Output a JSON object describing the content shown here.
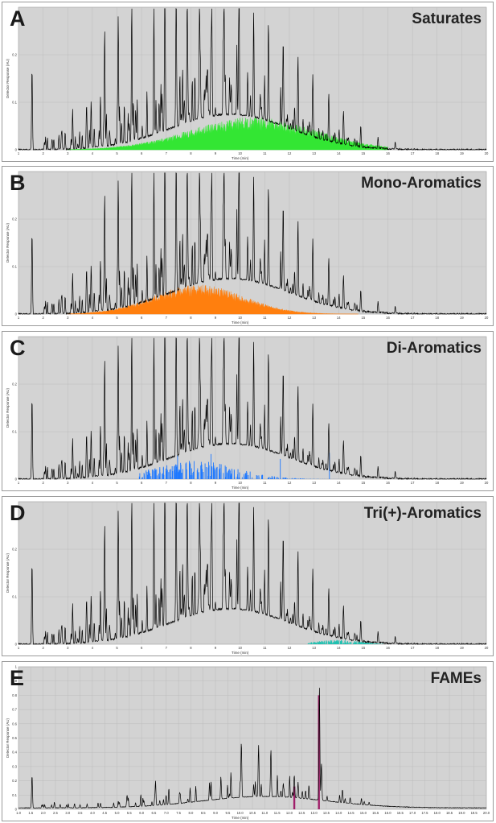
{
  "chart_data": [
    {
      "type": "line",
      "panel_letter": "A",
      "title": "Saturates",
      "xlabel": "Time (min)",
      "ylabel": "Detector Response (AU)",
      "xlim": [
        1,
        20
      ],
      "ylim": [
        0,
        0.3
      ],
      "xticks": [
        "1",
        "2",
        "3",
        "4",
        "5",
        "6",
        "7",
        "8",
        "9",
        "10",
        "11",
        "12",
        "13",
        "14",
        "15",
        "16",
        "17",
        "18",
        "19",
        "20"
      ],
      "yticks": [
        "0",
        "0.1",
        "0.2"
      ],
      "overlay_color": "#33e633",
      "overlay_mode": "envelope",
      "overlay_range": [
        3.0,
        16.0
      ],
      "overlay_peak": 10.5,
      "overlay_amp": 0.055,
      "overlay_spread": 3.6,
      "grid": true
    },
    {
      "type": "line",
      "panel_letter": "B",
      "title": "Mono-Aromatics",
      "xlabel": "Time (min)",
      "ylabel": "Detector Response (AU)",
      "xlim": [
        1,
        20
      ],
      "ylim": [
        0,
        0.3
      ],
      "xticks": [
        "1",
        "2",
        "3",
        "4",
        "5",
        "6",
        "7",
        "8",
        "9",
        "10",
        "11",
        "12",
        "13",
        "14",
        "15",
        "16",
        "17",
        "18",
        "19",
        "20"
      ],
      "yticks": [
        "0",
        "0.1",
        "0.2"
      ],
      "overlay_color": "#ff7f0e",
      "overlay_mode": "envelope",
      "overlay_range": [
        3.0,
        14.8
      ],
      "overlay_peak": 8.3,
      "overlay_amp": 0.05,
      "overlay_spread": 2.6,
      "grid": true
    },
    {
      "type": "line",
      "panel_letter": "C",
      "title": "Di-Aromatics",
      "xlabel": "Time (min)",
      "ylabel": "Detector Response (AU)",
      "xlim": [
        1,
        20
      ],
      "ylim": [
        0,
        0.3
      ],
      "xticks": [
        "1",
        "2",
        "3",
        "4",
        "5",
        "6",
        "7",
        "8",
        "9",
        "10",
        "11",
        "12",
        "13",
        "14",
        "15",
        "16",
        "17",
        "18",
        "19",
        "20"
      ],
      "yticks": [
        "0",
        "0.1",
        "0.2"
      ],
      "overlay_color": "#1e78ff",
      "overlay_mode": "spikes",
      "overlay_range": [
        5.9,
        14.8
      ],
      "overlay_peak": 8.2,
      "overlay_amp": 0.028,
      "overlay_spread": 2.4,
      "grid": true
    },
    {
      "type": "line",
      "panel_letter": "D",
      "title": "Tri(+)-Aromatics",
      "xlabel": "Time (min)",
      "ylabel": "Detector Response (AU)",
      "xlim": [
        1,
        20
      ],
      "ylim": [
        0,
        0.3
      ],
      "xticks": [
        "1",
        "2",
        "3",
        "4",
        "5",
        "6",
        "7",
        "8",
        "9",
        "10",
        "11",
        "12",
        "13",
        "14",
        "15",
        "16",
        "17",
        "18",
        "19",
        "20"
      ],
      "yticks": [
        "0",
        "0.1",
        "0.2"
      ],
      "overlay_color": "#20c0b0",
      "overlay_mode": "spikes",
      "overlay_range": [
        12.7,
        15.8
      ],
      "overlay_peak": 14.0,
      "overlay_amp": 0.007,
      "overlay_spread": 1.2,
      "grid": true
    },
    {
      "type": "line",
      "panel_letter": "E",
      "title": "FAMEs",
      "xlabel": "Time (min)",
      "ylabel": "Detector Response (AU)",
      "xlim": [
        1,
        20
      ],
      "ylim": [
        0,
        1.0
      ],
      "xticks": [
        "1.0",
        "1.5",
        "2.0",
        "2.5",
        "3.0",
        "3.5",
        "4.0",
        "4.5",
        "5.0",
        "5.5",
        "6.0",
        "6.5",
        "7.0",
        "7.5",
        "8.0",
        "8.5",
        "9.0",
        "9.5",
        "10.0",
        "10.5",
        "11.0",
        "11.5",
        "12.0",
        "12.5",
        "13.0",
        "13.5",
        "14.0",
        "14.5",
        "15.0",
        "15.5",
        "16.0",
        "16.5",
        "17.0",
        "17.5",
        "18.0",
        "18.5",
        "19.0",
        "19.5",
        "20.0"
      ],
      "yticks": [
        "0",
        "0.1",
        "0.2",
        "0.3",
        "0.4",
        "0.5",
        "0.6",
        "0.7",
        "0.8",
        "0.9",
        "1"
      ],
      "overlay_color": "#a0206a",
      "overlay_mode": "fames",
      "fame_peaks": [
        [
          12.2,
          0.16
        ],
        [
          13.2,
          0.8
        ]
      ],
      "grid": true
    }
  ]
}
